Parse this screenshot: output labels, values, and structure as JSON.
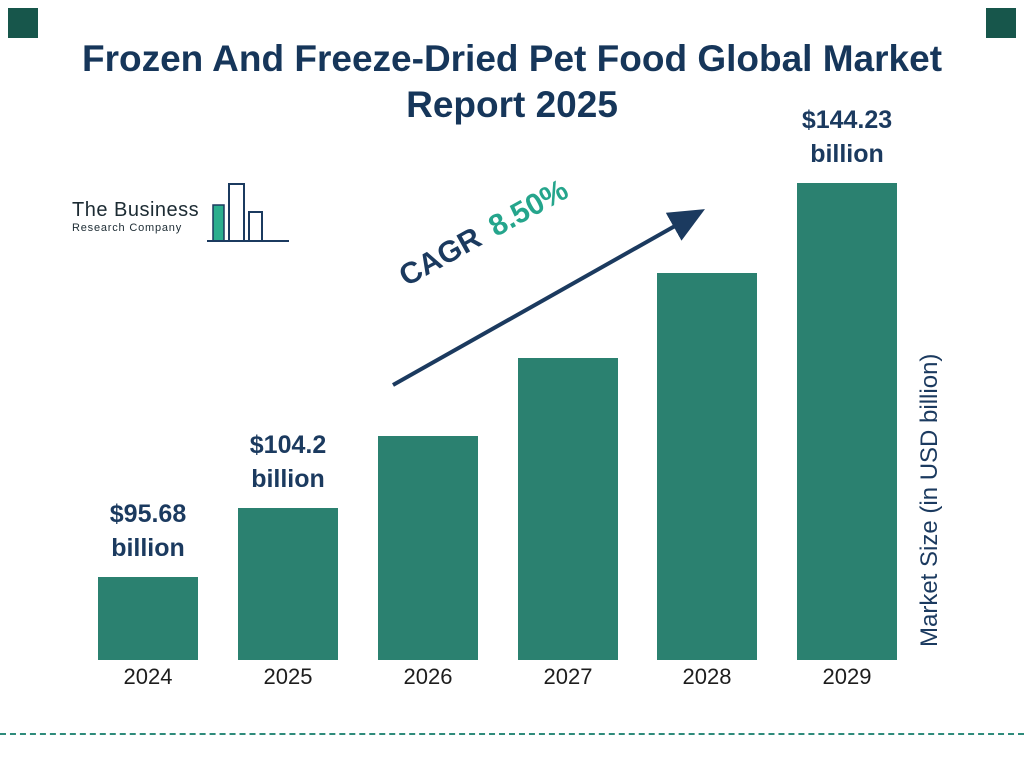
{
  "title": "Frozen And Freeze-Dried Pet Food Global Market Report 2025",
  "logo": {
    "line1": "The Business",
    "line2": "Research Company"
  },
  "cagr": {
    "label": "CAGR",
    "value": "8.50%"
  },
  "colors": {
    "bar": "#2B8170",
    "navy": "#1B3A5F",
    "cagr_green": "#25A58C",
    "corner_square": "#17564B",
    "dashed_line": "#2E8B7B"
  },
  "chart_data": {
    "type": "bar",
    "title": "Frozen And Freeze-Dried Pet Food Global Market Report 2025",
    "categories": [
      "2024",
      "2025",
      "2026",
      "2027",
      "2028",
      "2029"
    ],
    "values": [
      95.68,
      104.2,
      113.06,
      122.67,
      133.09,
      144.23
    ],
    "bar_labels": [
      [
        "$95.68",
        "billion"
      ],
      [
        "$104.2",
        "billion"
      ],
      null,
      null,
      null,
      [
        "$144.23",
        "billion"
      ]
    ],
    "xlabel": "",
    "ylabel": "Market Size (in USD billion)",
    "cagr_annotation": "CAGR 8.50%",
    "legend": "none",
    "grid": "off"
  }
}
